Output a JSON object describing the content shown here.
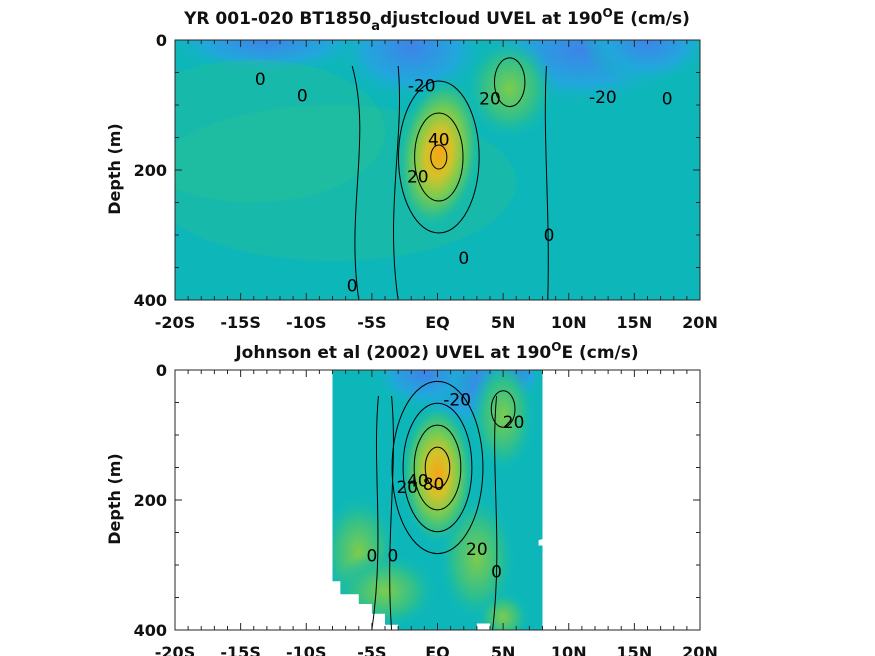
{
  "chart_data": [
    {
      "type": "heatmap",
      "title": "YR 001-020 BT1850",
      "title_sub": "a",
      "title_rest": "djustcloud UVEL at 190",
      "title_sup": "O",
      "title_end": "E (cm/s)",
      "ylabel": "Depth (m)",
      "xlim": [
        -20,
        20
      ],
      "ylim": [
        0,
        400
      ],
      "xtick_labels": [
        "-20S",
        "-15S",
        "-10S",
        "-5S",
        "EQ",
        "5N",
        "10N",
        "15N",
        "20N"
      ],
      "ytick_labels": [
        "0",
        "200",
        "400"
      ],
      "contour_labels": [
        {
          "text": "0",
          "x": -13.5,
          "y": 60
        },
        {
          "text": "0",
          "x": -10.3,
          "y": 85
        },
        {
          "text": "-20",
          "x": -1.2,
          "y": 70
        },
        {
          "text": "20",
          "x": 4.0,
          "y": 90
        },
        {
          "text": "-20",
          "x": 12.6,
          "y": 88
        },
        {
          "text": "0",
          "x": 17.5,
          "y": 90
        },
        {
          "text": "40",
          "x": 0.1,
          "y": 153
        },
        {
          "text": "20",
          "x": -1.5,
          "y": 210
        },
        {
          "text": "0",
          "x": 8.5,
          "y": 300
        },
        {
          "text": "0",
          "x": 2.0,
          "y": 335
        },
        {
          "text": "0",
          "x": -6.5,
          "y": 378
        }
      ],
      "jet_maxima": [
        {
          "x": 0.1,
          "y": 180,
          "u": 65
        },
        {
          "x": 5.5,
          "y": 65,
          "u": 28
        }
      ],
      "colormap": [
        "#3e84e8",
        "#21a7dc",
        "#0db7b9",
        "#2cbf90",
        "#7ccc4e",
        "#d4c22a",
        "#f5a515"
      ]
    },
    {
      "type": "heatmap",
      "title": "Johnson et al (2002) UVEL at 190",
      "title_sup": "O",
      "title_end": "E (cm/s)",
      "ylabel": "Depth (m)",
      "xlim": [
        -20,
        20
      ],
      "ylim": [
        0,
        400
      ],
      "data_x_extent": [
        -8,
        8
      ],
      "xtick_labels": [
        "-20S",
        "-15S",
        "-10S",
        "-5S",
        "EQ",
        "5N",
        "10N",
        "15N",
        "20N"
      ],
      "ytick_labels": [
        "0",
        "200",
        "400"
      ],
      "contour_labels": [
        {
          "text": "-20",
          "x": 1.5,
          "y": 45
        },
        {
          "text": "20",
          "x": 5.8,
          "y": 80
        },
        {
          "text": "20",
          "x": -2.3,
          "y": 180
        },
        {
          "text": "40",
          "x": -1.5,
          "y": 170
        },
        {
          "text": "80",
          "x": -0.3,
          "y": 175
        },
        {
          "text": "0",
          "x": -5.0,
          "y": 285
        },
        {
          "text": "0",
          "x": -3.4,
          "y": 285
        },
        {
          "text": "20",
          "x": 3.0,
          "y": 275
        },
        {
          "text": "0",
          "x": 4.5,
          "y": 310
        }
      ],
      "jet_maxima": [
        {
          "x": 0.0,
          "y": 150,
          "u": 95
        },
        {
          "x": 5.0,
          "y": 60,
          "u": 25
        }
      ],
      "colormap": [
        "#3e84e8",
        "#21a7dc",
        "#0db7b9",
        "#2cbf90",
        "#7ccc4e",
        "#d4c22a",
        "#f5a515"
      ]
    }
  ]
}
